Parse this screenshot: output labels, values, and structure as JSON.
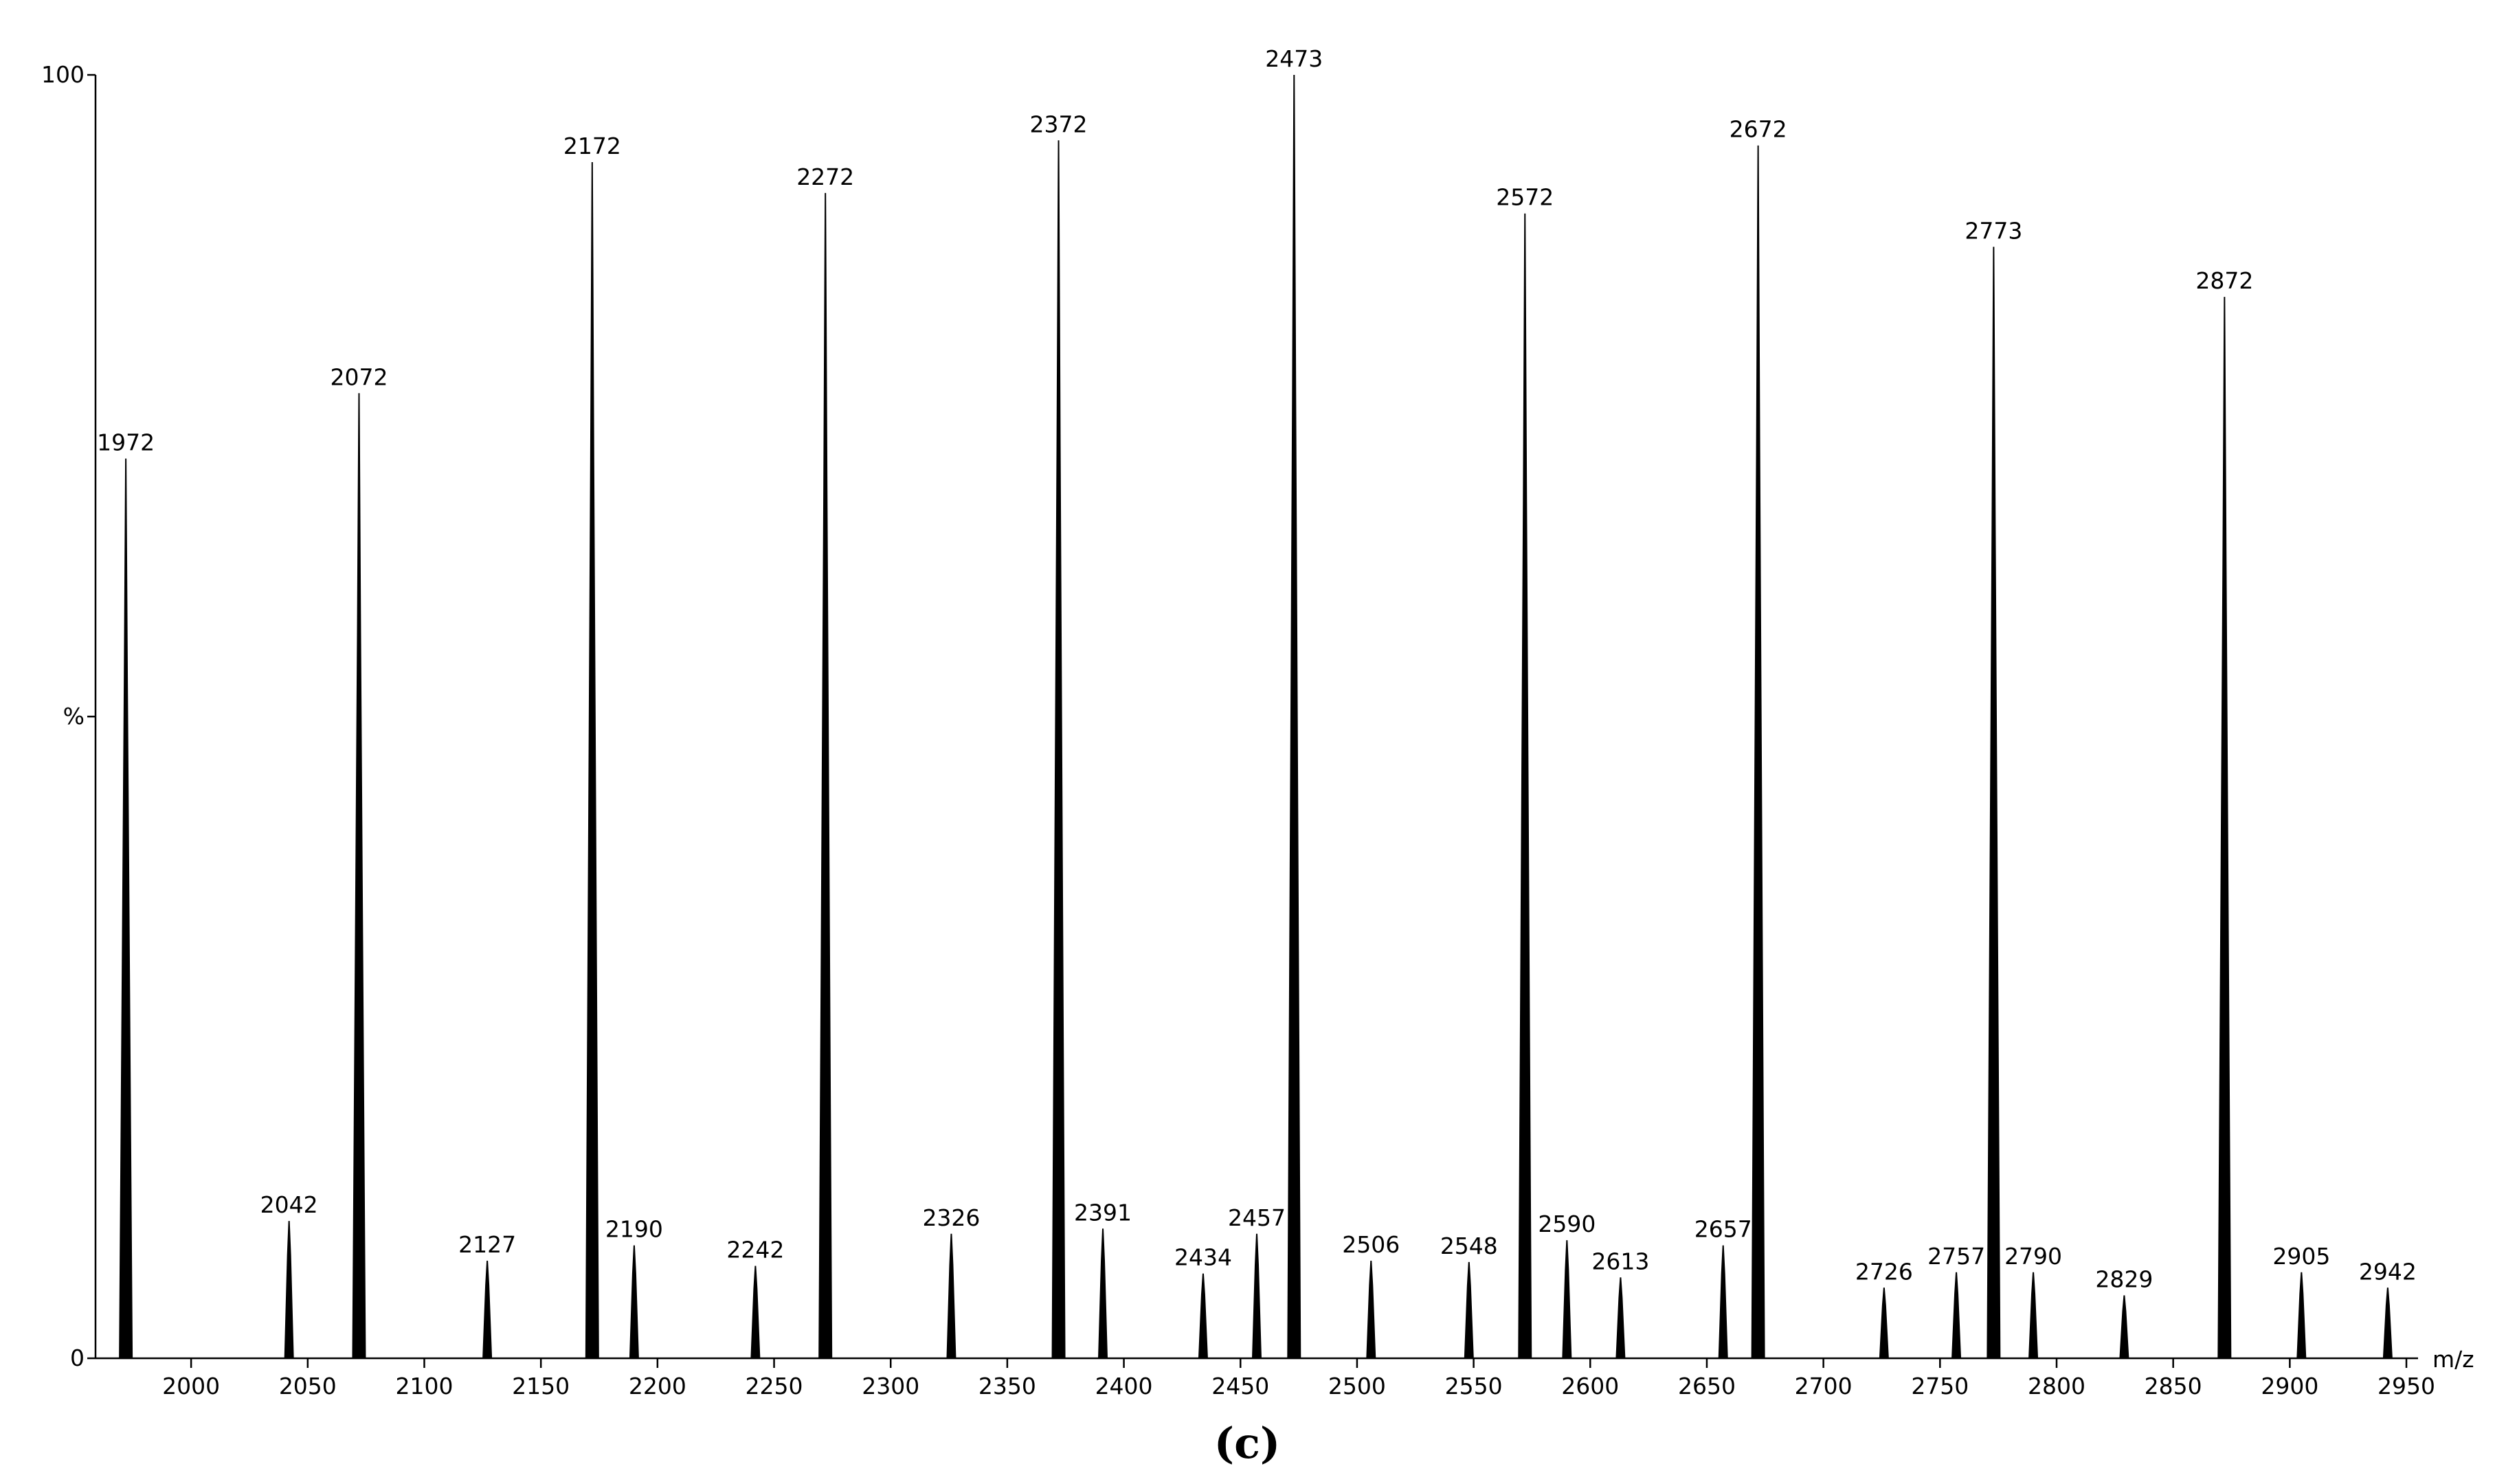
{
  "chart_data": {
    "type": "spectrum",
    "x_label": "m/z",
    "caption": "(c)",
    "x": [
      1972,
      2042,
      2072,
      2127,
      2172,
      2190,
      2242,
      2272,
      2326,
      2372,
      2391,
      2434,
      2457,
      2473,
      2506,
      2548,
      2572,
      2590,
      2613,
      2657,
      2672,
      2726,
      2757,
      2773,
      2790,
      2829,
      2872,
      2905,
      2942
    ],
    "values": [
      70.1,
      10.7,
      75.2,
      7.6,
      93.2,
      8.8,
      7.2,
      90.8,
      9.7,
      94.9,
      10.1,
      6.6,
      9.7,
      100,
      7.6,
      7.5,
      89.2,
      9.2,
      6.3,
      8.8,
      94.5,
      5.5,
      6.7,
      86.6,
      6.7,
      4.9,
      82.7,
      6.7,
      5.5
    ],
    "color": "#000000",
    "xlim": [
      1959,
      2955
    ],
    "ylim": [
      0,
      100
    ],
    "xticks": [
      2000,
      2050,
      2100,
      2150,
      2200,
      2250,
      2300,
      2350,
      2400,
      2450,
      2500,
      2550,
      2600,
      2650,
      2700,
      2750,
      2800,
      2850,
      2900,
      2950
    ],
    "yticks": [
      0,
      {
        "value": 50,
        "label": "%"
      },
      100
    ]
  }
}
